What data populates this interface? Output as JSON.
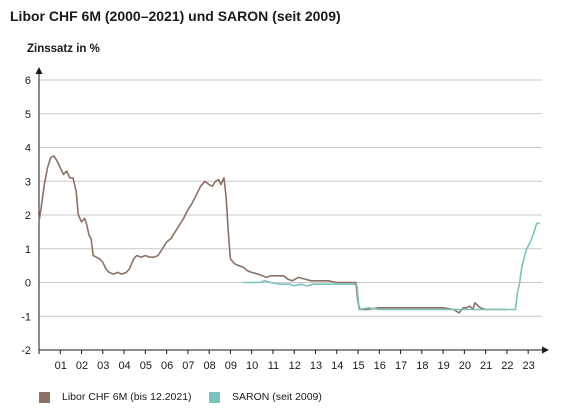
{
  "chart_data": {
    "type": "line",
    "title": "Libor CHF 6M (2000–2021) und SARON (seit 2009)",
    "ylabel": "Zinssatz in %",
    "xlabel": "",
    "xlim": [
      2000,
      2023.65
    ],
    "ylim": [
      -2,
      6
    ],
    "yticks": [
      -2,
      -1,
      0,
      1,
      2,
      3,
      4,
      5,
      6
    ],
    "xtick_labels": [
      "01",
      "02",
      "03",
      "04",
      "05",
      "06",
      "07",
      "08",
      "09",
      "10",
      "11",
      "12",
      "13",
      "14",
      "15",
      "16",
      "17",
      "18",
      "19",
      "20",
      "21",
      "22",
      "23"
    ],
    "grid": "horizontal",
    "legend_position": "bottom",
    "series": [
      {
        "name": "Libor CHF 6M (bis 12.2021)",
        "color": "#8c7266",
        "points": [
          [
            2000.0,
            1.8
          ],
          [
            2000.1,
            2.2
          ],
          [
            2000.25,
            2.9
          ],
          [
            2000.4,
            3.4
          ],
          [
            2000.55,
            3.7
          ],
          [
            2000.7,
            3.75
          ],
          [
            2000.85,
            3.6
          ],
          [
            2001.0,
            3.4
          ],
          [
            2001.15,
            3.2
          ],
          [
            2001.3,
            3.3
          ],
          [
            2001.45,
            3.1
          ],
          [
            2001.6,
            3.1
          ],
          [
            2001.75,
            2.7
          ],
          [
            2001.85,
            2.0
          ],
          [
            2002.0,
            1.8
          ],
          [
            2002.15,
            1.9
          ],
          [
            2002.25,
            1.7
          ],
          [
            2002.35,
            1.4
          ],
          [
            2002.45,
            1.3
          ],
          [
            2002.55,
            0.8
          ],
          [
            2002.7,
            0.75
          ],
          [
            2002.85,
            0.7
          ],
          [
            2003.0,
            0.6
          ],
          [
            2003.15,
            0.4
          ],
          [
            2003.3,
            0.3
          ],
          [
            2003.5,
            0.25
          ],
          [
            2003.7,
            0.3
          ],
          [
            2003.9,
            0.25
          ],
          [
            2004.1,
            0.3
          ],
          [
            2004.25,
            0.4
          ],
          [
            2004.45,
            0.7
          ],
          [
            2004.6,
            0.8
          ],
          [
            2004.8,
            0.75
          ],
          [
            2005.0,
            0.8
          ],
          [
            2005.2,
            0.75
          ],
          [
            2005.4,
            0.75
          ],
          [
            2005.6,
            0.8
          ],
          [
            2005.8,
            1.0
          ],
          [
            2006.0,
            1.2
          ],
          [
            2006.2,
            1.3
          ],
          [
            2006.4,
            1.5
          ],
          [
            2006.6,
            1.7
          ],
          [
            2006.8,
            1.9
          ],
          [
            2007.0,
            2.15
          ],
          [
            2007.2,
            2.35
          ],
          [
            2007.4,
            2.6
          ],
          [
            2007.6,
            2.85
          ],
          [
            2007.8,
            3.0
          ],
          [
            2008.0,
            2.9
          ],
          [
            2008.15,
            2.85
          ],
          [
            2008.3,
            3.0
          ],
          [
            2008.45,
            3.05
          ],
          [
            2008.55,
            2.9
          ],
          [
            2008.7,
            3.1
          ],
          [
            2008.8,
            2.5
          ],
          [
            2008.9,
            1.5
          ],
          [
            2009.0,
            0.7
          ],
          [
            2009.2,
            0.55
          ],
          [
            2009.4,
            0.5
          ],
          [
            2009.6,
            0.45
          ],
          [
            2009.8,
            0.35
          ],
          [
            2010.0,
            0.3
          ],
          [
            2010.3,
            0.25
          ],
          [
            2010.5,
            0.2
          ],
          [
            2010.7,
            0.15
          ],
          [
            2010.9,
            0.2
          ],
          [
            2011.2,
            0.2
          ],
          [
            2011.5,
            0.2
          ],
          [
            2011.7,
            0.1
          ],
          [
            2011.9,
            0.05
          ],
          [
            2012.2,
            0.15
          ],
          [
            2012.5,
            0.1
          ],
          [
            2012.8,
            0.05
          ],
          [
            2013.2,
            0.05
          ],
          [
            2013.6,
            0.05
          ],
          [
            2014.0,
            0.0
          ],
          [
            2014.5,
            0.0
          ],
          [
            2014.9,
            0.0
          ],
          [
            2015.0,
            -0.6
          ],
          [
            2015.1,
            -0.8
          ],
          [
            2015.4,
            -0.8
          ],
          [
            2016.0,
            -0.75
          ],
          [
            2016.5,
            -0.75
          ],
          [
            2017.0,
            -0.75
          ],
          [
            2017.5,
            -0.75
          ],
          [
            2018.0,
            -0.75
          ],
          [
            2018.5,
            -0.75
          ],
          [
            2019.0,
            -0.75
          ],
          [
            2019.5,
            -0.8
          ],
          [
            2019.75,
            -0.9
          ],
          [
            2019.95,
            -0.75
          ],
          [
            2020.1,
            -0.75
          ],
          [
            2020.25,
            -0.7
          ],
          [
            2020.4,
            -0.8
          ],
          [
            2020.5,
            -0.6
          ],
          [
            2020.75,
            -0.75
          ],
          [
            2021.0,
            -0.8
          ],
          [
            2021.5,
            -0.8
          ],
          [
            2021.95,
            -0.8
          ]
        ]
      },
      {
        "name": "SARON (seit 2009)",
        "color": "#7cc2bd",
        "points": [
          [
            2009.6,
            0.0
          ],
          [
            2010.0,
            0.0
          ],
          [
            2010.4,
            0.0
          ],
          [
            2010.6,
            0.05
          ],
          [
            2010.9,
            0.0
          ],
          [
            2011.3,
            -0.05
          ],
          [
            2011.8,
            -0.05
          ],
          [
            2012.0,
            -0.1
          ],
          [
            2012.3,
            -0.05
          ],
          [
            2012.6,
            -0.1
          ],
          [
            2012.9,
            -0.05
          ],
          [
            2013.3,
            -0.05
          ],
          [
            2013.7,
            -0.05
          ],
          [
            2014.2,
            -0.05
          ],
          [
            2014.8,
            -0.05
          ],
          [
            2014.95,
            -0.1
          ],
          [
            2015.05,
            -0.8
          ],
          [
            2015.5,
            -0.75
          ],
          [
            2016.0,
            -0.8
          ],
          [
            2017.0,
            -0.8
          ],
          [
            2018.0,
            -0.8
          ],
          [
            2019.0,
            -0.8
          ],
          [
            2020.0,
            -0.8
          ],
          [
            2021.0,
            -0.8
          ],
          [
            2022.0,
            -0.8
          ],
          [
            2022.4,
            -0.8
          ],
          [
            2022.5,
            -0.3
          ],
          [
            2022.6,
            0.0
          ],
          [
            2022.7,
            0.45
          ],
          [
            2022.9,
            0.95
          ],
          [
            2023.1,
            1.2
          ],
          [
            2023.25,
            1.45
          ],
          [
            2023.4,
            1.75
          ],
          [
            2023.55,
            1.75
          ]
        ]
      }
    ]
  }
}
